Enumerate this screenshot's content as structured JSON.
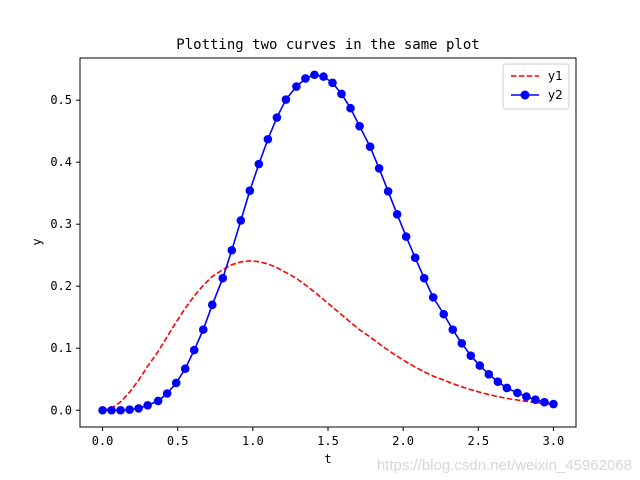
{
  "chart_data": {
    "type": "line",
    "title": "Plotting two curves in the same plot",
    "xlabel": "t",
    "ylabel": "y",
    "xlim": [
      -0.15,
      3.15
    ],
    "ylim": [
      -0.027,
      0.568
    ],
    "xticks": [
      0.0,
      0.5,
      1.0,
      1.5,
      2.0,
      2.5,
      3.0
    ],
    "xtick_labels": [
      "0.0",
      "0.5",
      "1.0",
      "1.5",
      "2.0",
      "2.5",
      "3.0"
    ],
    "yticks": [
      0.0,
      0.1,
      0.2,
      0.3,
      0.4,
      0.5
    ],
    "ytick_labels": [
      "0.0",
      "0.1",
      "0.2",
      "0.3",
      "0.4",
      "0.5"
    ],
    "grid": false,
    "legend_position": "top-right",
    "series": [
      {
        "name": "y1",
        "style": "dashed",
        "color": "#ff0000",
        "x": [
          0.0,
          0.06,
          0.12,
          0.18,
          0.24,
          0.3,
          0.37,
          0.43,
          0.49,
          0.55,
          0.61,
          0.67,
          0.73,
          0.8,
          0.86,
          0.92,
          0.98,
          1.04,
          1.1,
          1.16,
          1.22,
          1.29,
          1.35,
          1.41,
          1.47,
          1.53,
          1.59,
          1.65,
          1.71,
          1.78,
          1.84,
          1.9,
          1.96,
          2.02,
          2.08,
          2.14,
          2.2,
          2.27,
          2.33,
          2.39,
          2.45,
          2.51,
          2.57,
          2.63,
          2.69,
          2.76,
          2.82,
          2.88,
          2.94,
          3.0
        ],
        "values": [
          0.0,
          0.0035,
          0.0136,
          0.0291,
          0.0485,
          0.0711,
          0.0947,
          0.1188,
          0.1423,
          0.1643,
          0.1842,
          0.2014,
          0.2157,
          0.2267,
          0.2347,
          0.2393,
          0.2409,
          0.2396,
          0.2359,
          0.2299,
          0.2221,
          0.2127,
          0.2021,
          0.1907,
          0.1787,
          0.1664,
          0.1541,
          0.1418,
          0.1298,
          0.1183,
          0.1072,
          0.0968,
          0.0871,
          0.078,
          0.0697,
          0.062,
          0.055,
          0.0487,
          0.0429,
          0.0378,
          0.0332,
          0.029,
          0.0253,
          0.022,
          0.0191,
          0.0165,
          0.0143,
          0.0123,
          0.0105,
          0.009
        ]
      },
      {
        "name": "y2",
        "style": "solid-circle",
        "color": "#0000ff",
        "x": [
          0.0,
          0.06,
          0.12,
          0.18,
          0.24,
          0.3,
          0.37,
          0.43,
          0.49,
          0.55,
          0.61,
          0.67,
          0.73,
          0.8,
          0.86,
          0.92,
          0.98,
          1.04,
          1.1,
          1.16,
          1.22,
          1.29,
          1.35,
          1.41,
          1.47,
          1.53,
          1.59,
          1.65,
          1.71,
          1.78,
          1.84,
          1.9,
          1.96,
          2.02,
          2.08,
          2.14,
          2.2,
          2.27,
          2.33,
          2.39,
          2.45,
          2.51,
          2.57,
          2.63,
          2.69,
          2.76,
          2.82,
          2.88,
          2.94,
          3.0
        ],
        "values": [
          0.0,
          0.0,
          0.0,
          0.001,
          0.003,
          0.008,
          0.015,
          0.027,
          0.044,
          0.067,
          0.097,
          0.13,
          0.17,
          0.213,
          0.258,
          0.306,
          0.354,
          0.397,
          0.437,
          0.472,
          0.501,
          0.522,
          0.535,
          0.541,
          0.538,
          0.528,
          0.51,
          0.487,
          0.458,
          0.425,
          0.39,
          0.353,
          0.316,
          0.28,
          0.246,
          0.213,
          0.182,
          0.155,
          0.13,
          0.108,
          0.088,
          0.072,
          0.058,
          0.046,
          0.036,
          0.028,
          0.022,
          0.017,
          0.013,
          0.01
        ]
      }
    ]
  },
  "watermark": "https://blog.csdn.net/weixin_45962068"
}
